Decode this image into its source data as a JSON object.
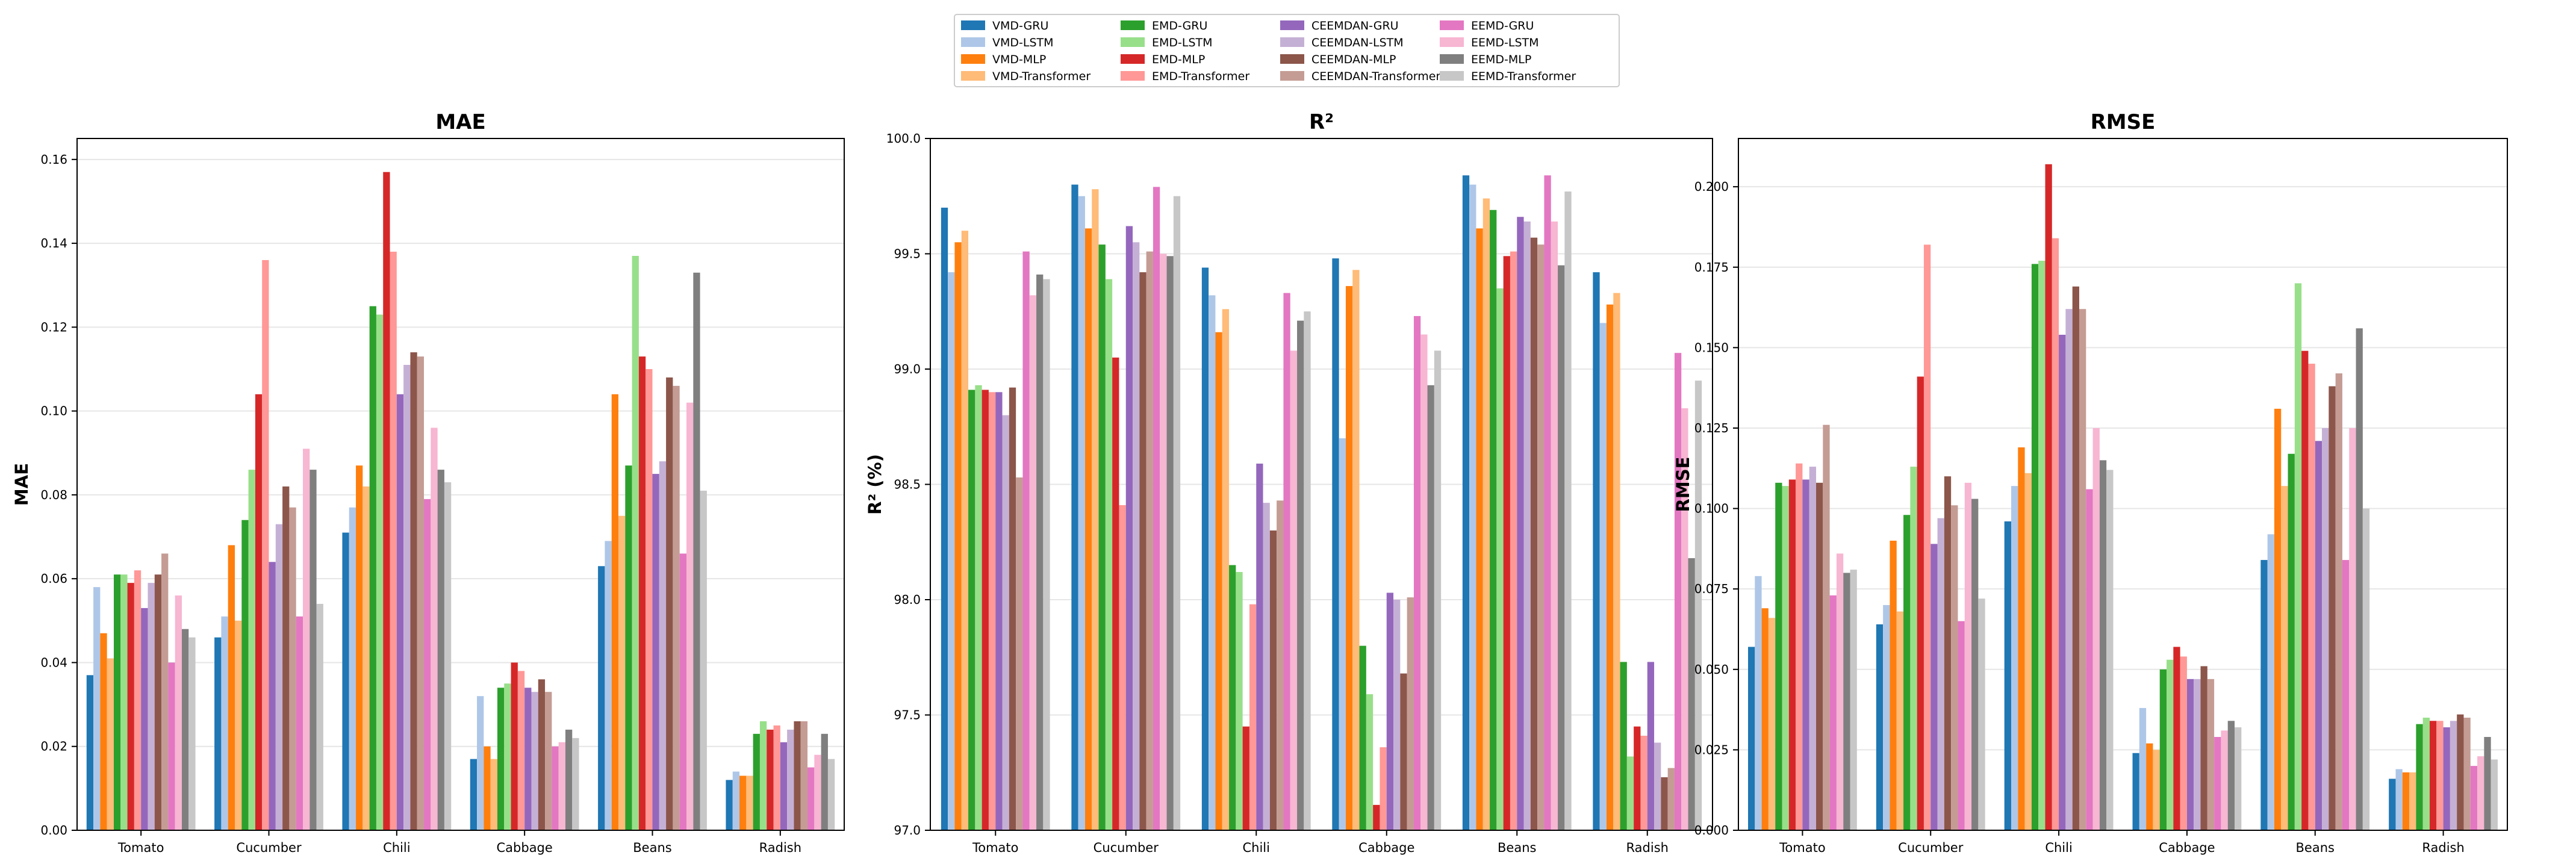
{
  "legend": {
    "placement": "top-center",
    "entries": [
      {
        "name": "VMD-GRU",
        "color": "#1f77b4"
      },
      {
        "name": "VMD-LSTM",
        "color": "#aec7e8"
      },
      {
        "name": "VMD-MLP",
        "color": "#ff7f0e"
      },
      {
        "name": "VMD-Transformer",
        "color": "#ffbb78"
      },
      {
        "name": "EMD-GRU",
        "color": "#2ca02c"
      },
      {
        "name": "EMD-LSTM",
        "color": "#98df8a"
      },
      {
        "name": "EMD-MLP",
        "color": "#d62728"
      },
      {
        "name": "EMD-Transformer",
        "color": "#ff9896"
      },
      {
        "name": "CEEMDAN-GRU",
        "color": "#9467bd"
      },
      {
        "name": "CEEMDAN-LSTM",
        "color": "#c5b0d5"
      },
      {
        "name": "CEEMDAN-MLP",
        "color": "#8c564b"
      },
      {
        "name": "CEEMDAN-Transformer",
        "color": "#c49c94"
      },
      {
        "name": "EEMD-GRU",
        "color": "#e377c2"
      },
      {
        "name": "EEMD-LSTM",
        "color": "#f7b6d2"
      },
      {
        "name": "EEMD-MLP",
        "color": "#7f7f7f"
      },
      {
        "name": "EEMD-Transformer",
        "color": "#c7c7c7"
      }
    ]
  },
  "chart_data": [
    {
      "type": "bar",
      "title": "MAE",
      "xlabel": "",
      "ylabel": "MAE",
      "ylim": [
        0,
        0.165
      ],
      "yticks": [
        0.0,
        0.02,
        0.04,
        0.06,
        0.08,
        0.1,
        0.12,
        0.14,
        0.16
      ],
      "ytick_labels": [
        "0.00",
        "0.02",
        "0.04",
        "0.06",
        "0.08",
        "0.10",
        "0.12",
        "0.14",
        "0.16"
      ],
      "grid": "y",
      "categories": [
        "Tomato",
        "Cucumber",
        "Chili",
        "Cabbage",
        "Beans",
        "Radish"
      ],
      "series": [
        {
          "name": "VMD-GRU",
          "values": [
            0.037,
            0.046,
            0.071,
            0.017,
            0.063,
            0.012
          ]
        },
        {
          "name": "VMD-LSTM",
          "values": [
            0.058,
            0.051,
            0.077,
            0.032,
            0.069,
            0.014
          ]
        },
        {
          "name": "VMD-MLP",
          "values": [
            0.047,
            0.068,
            0.087,
            0.02,
            0.104,
            0.013
          ]
        },
        {
          "name": "VMD-Transformer",
          "values": [
            0.041,
            0.05,
            0.082,
            0.017,
            0.075,
            0.013
          ]
        },
        {
          "name": "EMD-GRU",
          "values": [
            0.061,
            0.074,
            0.125,
            0.034,
            0.087,
            0.023
          ]
        },
        {
          "name": "EMD-LSTM",
          "values": [
            0.061,
            0.086,
            0.123,
            0.035,
            0.137,
            0.026
          ]
        },
        {
          "name": "EMD-MLP",
          "values": [
            0.059,
            0.104,
            0.157,
            0.04,
            0.113,
            0.024
          ]
        },
        {
          "name": "EMD-Transformer",
          "values": [
            0.062,
            0.136,
            0.138,
            0.038,
            0.11,
            0.025
          ]
        },
        {
          "name": "CEEMDAN-GRU",
          "values": [
            0.053,
            0.064,
            0.104,
            0.034,
            0.085,
            0.021
          ]
        },
        {
          "name": "CEEMDAN-LSTM",
          "values": [
            0.059,
            0.073,
            0.111,
            0.033,
            0.088,
            0.024
          ]
        },
        {
          "name": "CEEMDAN-MLP",
          "values": [
            0.061,
            0.082,
            0.114,
            0.036,
            0.108,
            0.026
          ]
        },
        {
          "name": "CEEMDAN-Transformer",
          "values": [
            0.066,
            0.077,
            0.113,
            0.033,
            0.106,
            0.026
          ]
        },
        {
          "name": "EEMD-GRU",
          "values": [
            0.04,
            0.051,
            0.079,
            0.02,
            0.066,
            0.015
          ]
        },
        {
          "name": "EEMD-LSTM",
          "values": [
            0.056,
            0.091,
            0.096,
            0.021,
            0.102,
            0.018
          ]
        },
        {
          "name": "EEMD-MLP",
          "values": [
            0.048,
            0.086,
            0.086,
            0.024,
            0.133,
            0.023
          ]
        },
        {
          "name": "EEMD-Transformer",
          "values": [
            0.046,
            0.054,
            0.083,
            0.022,
            0.081,
            0.017
          ]
        }
      ]
    },
    {
      "type": "bar",
      "title": "R²",
      "xlabel": "",
      "ylabel": "R² (%)",
      "ylim": [
        97.0,
        100.0
      ],
      "yticks": [
        97.0,
        97.5,
        98.0,
        98.5,
        99.0,
        99.5,
        100.0
      ],
      "ytick_labels": [
        "97.0",
        "97.5",
        "98.0",
        "98.5",
        "99.0",
        "99.5",
        "100.0"
      ],
      "grid": "y",
      "categories": [
        "Tomato",
        "Cucumber",
        "Chili",
        "Cabbage",
        "Beans",
        "Radish"
      ],
      "series": [
        {
          "name": "VMD-GRU",
          "values": [
            99.7,
            99.8,
            99.44,
            99.48,
            99.84,
            99.42
          ]
        },
        {
          "name": "VMD-LSTM",
          "values": [
            99.42,
            99.75,
            99.32,
            98.7,
            99.8,
            99.2
          ]
        },
        {
          "name": "VMD-MLP",
          "values": [
            99.55,
            99.61,
            99.16,
            99.36,
            99.61,
            99.28
          ]
        },
        {
          "name": "VMD-Transformer",
          "values": [
            99.6,
            99.78,
            99.26,
            99.43,
            99.74,
            99.33
          ]
        },
        {
          "name": "EMD-GRU",
          "values": [
            98.91,
            99.54,
            98.15,
            97.8,
            99.69,
            97.73
          ]
        },
        {
          "name": "EMD-LSTM",
          "values": [
            98.93,
            99.39,
            98.12,
            97.59,
            99.35,
            97.32
          ]
        },
        {
          "name": "EMD-MLP",
          "values": [
            98.91,
            99.05,
            97.45,
            97.11,
            99.49,
            97.45
          ]
        },
        {
          "name": "EMD-Transformer",
          "values": [
            98.9,
            98.41,
            97.98,
            97.36,
            99.51,
            97.41
          ]
        },
        {
          "name": "CEEMDAN-GRU",
          "values": [
            98.9,
            99.62,
            98.59,
            98.03,
            99.66,
            97.73
          ]
        },
        {
          "name": "CEEMDAN-LSTM",
          "values": [
            98.8,
            99.55,
            98.42,
            98.0,
            99.64,
            97.38
          ]
        },
        {
          "name": "CEEMDAN-MLP",
          "values": [
            98.92,
            99.42,
            98.3,
            97.68,
            99.57,
            97.23
          ]
        },
        {
          "name": "CEEMDAN-Transformer",
          "values": [
            98.53,
            99.51,
            98.43,
            98.01,
            99.54,
            97.27
          ]
        },
        {
          "name": "EEMD-GRU",
          "values": [
            99.51,
            99.79,
            99.33,
            99.23,
            99.84,
            99.07
          ]
        },
        {
          "name": "EEMD-LSTM",
          "values": [
            99.32,
            99.5,
            99.08,
            99.15,
            99.64,
            98.83
          ]
        },
        {
          "name": "EEMD-MLP",
          "values": [
            99.41,
            99.49,
            99.21,
            98.93,
            99.45,
            98.18
          ]
        },
        {
          "name": "EEMD-Transformer",
          "values": [
            99.39,
            99.75,
            99.25,
            99.08,
            99.77,
            98.95
          ]
        }
      ]
    },
    {
      "type": "bar",
      "title": "RMSE",
      "xlabel": "",
      "ylabel": "RMSE",
      "ylim": [
        0,
        0.215
      ],
      "yticks": [
        0.0,
        0.025,
        0.05,
        0.075,
        0.1,
        0.125,
        0.15,
        0.175,
        0.2
      ],
      "ytick_labels": [
        "0.000",
        "0.025",
        "0.050",
        "0.075",
        "0.100",
        "0.125",
        "0.150",
        "0.175",
        "0.200"
      ],
      "grid": "y",
      "categories": [
        "Tomato",
        "Cucumber",
        "Chili",
        "Cabbage",
        "Beans",
        "Radish"
      ],
      "series": [
        {
          "name": "VMD-GRU",
          "values": [
            0.057,
            0.064,
            0.096,
            0.024,
            0.084,
            0.016
          ]
        },
        {
          "name": "VMD-LSTM",
          "values": [
            0.079,
            0.07,
            0.107,
            0.038,
            0.092,
            0.019
          ]
        },
        {
          "name": "VMD-MLP",
          "values": [
            0.069,
            0.09,
            0.119,
            0.027,
            0.131,
            0.018
          ]
        },
        {
          "name": "VMD-Transformer",
          "values": [
            0.066,
            0.068,
            0.111,
            0.025,
            0.107,
            0.018
          ]
        },
        {
          "name": "EMD-GRU",
          "values": [
            0.108,
            0.098,
            0.176,
            0.05,
            0.117,
            0.033
          ]
        },
        {
          "name": "EMD-LSTM",
          "values": [
            0.107,
            0.113,
            0.177,
            0.053,
            0.17,
            0.035
          ]
        },
        {
          "name": "EMD-MLP",
          "values": [
            0.109,
            0.141,
            0.207,
            0.057,
            0.149,
            0.034
          ]
        },
        {
          "name": "EMD-Transformer",
          "values": [
            0.114,
            0.182,
            0.184,
            0.054,
            0.145,
            0.034
          ]
        },
        {
          "name": "CEEMDAN-GRU",
          "values": [
            0.109,
            0.089,
            0.154,
            0.047,
            0.121,
            0.032
          ]
        },
        {
          "name": "CEEMDAN-LSTM",
          "values": [
            0.113,
            0.097,
            0.162,
            0.047,
            0.125,
            0.034
          ]
        },
        {
          "name": "CEEMDAN-MLP",
          "values": [
            0.108,
            0.11,
            0.169,
            0.051,
            0.138,
            0.036
          ]
        },
        {
          "name": "CEEMDAN-Transformer",
          "values": [
            0.126,
            0.101,
            0.162,
            0.047,
            0.142,
            0.035
          ]
        },
        {
          "name": "EEMD-GRU",
          "values": [
            0.073,
            0.065,
            0.106,
            0.029,
            0.084,
            0.02
          ]
        },
        {
          "name": "EEMD-LSTM",
          "values": [
            0.086,
            0.108,
            0.125,
            0.031,
            0.125,
            0.023
          ]
        },
        {
          "name": "EEMD-MLP",
          "values": [
            0.08,
            0.103,
            0.115,
            0.034,
            0.156,
            0.029
          ]
        },
        {
          "name": "EEMD-Transformer",
          "values": [
            0.081,
            0.072,
            0.112,
            0.032,
            0.1,
            0.022
          ]
        }
      ]
    }
  ]
}
